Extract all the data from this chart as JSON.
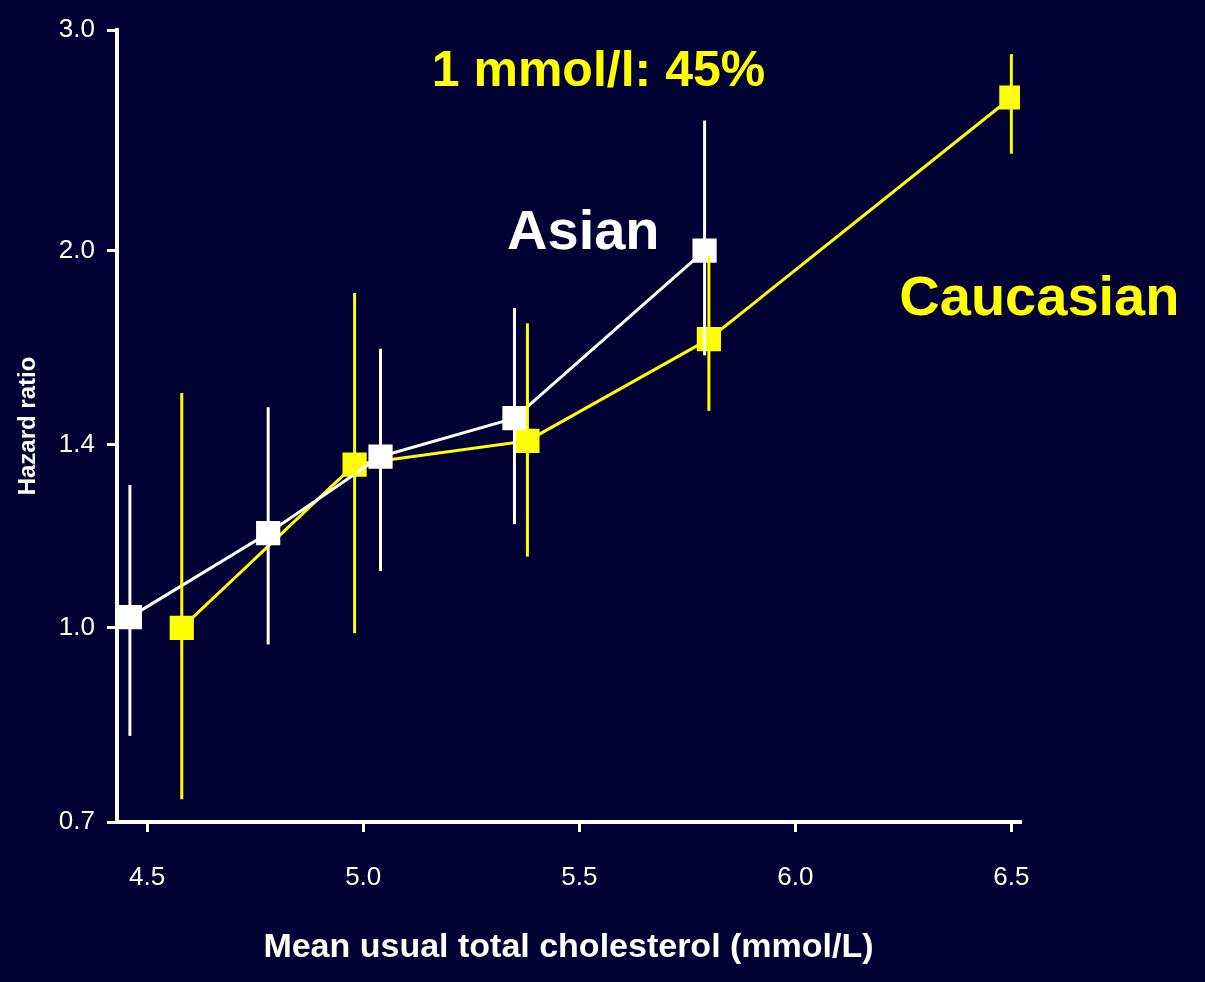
{
  "chart_data": {
    "type": "line",
    "xlabel": "Mean usual total cholesterol (mmol/L)",
    "ylabel": "Hazard ratio",
    "annotations": [
      "1 mmol/l: 45%"
    ],
    "log": "y",
    "grid": false,
    "legend": false,
    "marker": "square",
    "line_style": "solid",
    "xlim": [
      4.43,
      6.52
    ],
    "xticks": [
      4.5,
      {
        "value": 5,
        "label": "5.0"
      },
      5.5,
      {
        "value": 6,
        "label": "6.0"
      },
      6.5
    ],
    "ylim": [
      0.7,
      3.0
    ],
    "yticks": [
      0.7,
      {
        "value": 1,
        "label": "1.0"
      },
      1.4,
      {
        "value": 2,
        "label": "2.0"
      },
      {
        "value": 3,
        "label": "3.0"
      }
    ],
    "series": [
      {
        "name": "Asian",
        "color": "#ffffff",
        "x": [
          4.46,
          4.78,
          5.04,
          5.35,
          5.79
        ],
        "values": [
          1.02,
          1.19,
          1.37,
          1.47,
          2.0
        ],
        "errors": [
          [
            0.82,
            1.3
          ],
          [
            0.97,
            1.5
          ],
          [
            1.11,
            1.67
          ],
          [
            1.21,
            1.8
          ],
          [
            1.65,
            2.54
          ]
        ]
      },
      {
        "name": "Caucasian",
        "color": "#ffff00",
        "x": [
          4.58,
          4.98,
          5.38,
          5.8,
          6.5
        ],
        "values": [
          1.0,
          1.35,
          1.41,
          1.7,
          2.65
        ],
        "errors": [
          [
            0.73,
            1.54
          ],
          [
            0.99,
            1.85
          ],
          [
            1.14,
            1.75
          ],
          [
            1.49,
            1.98
          ],
          [
            2.39,
            2.87
          ]
        ]
      }
    ]
  }
}
